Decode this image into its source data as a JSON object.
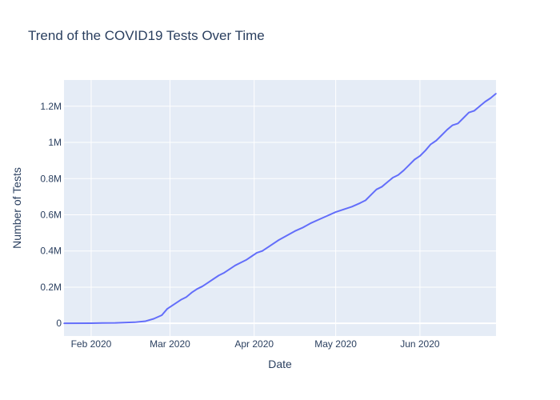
{
  "chart_data": {
    "type": "line",
    "title": "Trend of the COVID19 Tests Over Time",
    "xlabel": "Date",
    "ylabel": "Number of Tests",
    "xlim": [
      "2020-01-22",
      "2020-06-29"
    ],
    "ylim": [
      -70000,
      1345000
    ],
    "grid": true,
    "x_ticks": [
      {
        "date": "2020-02-01",
        "label": "Feb 2020"
      },
      {
        "date": "2020-03-01",
        "label": "Mar 2020"
      },
      {
        "date": "2020-04-01",
        "label": "Apr 2020"
      },
      {
        "date": "2020-05-01",
        "label": "May 2020"
      },
      {
        "date": "2020-06-01",
        "label": "Jun 2020"
      }
    ],
    "y_ticks": [
      {
        "value": 0,
        "label": "0"
      },
      {
        "value": 200000,
        "label": "0.2M"
      },
      {
        "value": 400000,
        "label": "0.4M"
      },
      {
        "value": 600000,
        "label": "0.6M"
      },
      {
        "value": 800000,
        "label": "0.8M"
      },
      {
        "value": 1000000,
        "label": "1M"
      },
      {
        "value": 1200000,
        "label": "1.2M"
      }
    ],
    "series": [
      {
        "color": "#636efa",
        "x": [
          "2020-01-22",
          "2020-02-01",
          "2020-02-10",
          "2020-02-17",
          "2020-02-21",
          "2020-02-24",
          "2020-02-27",
          "2020-02-29",
          "2020-03-02",
          "2020-03-03",
          "2020-03-05",
          "2020-03-07",
          "2020-03-09",
          "2020-03-11",
          "2020-03-13",
          "2020-03-15",
          "2020-03-17",
          "2020-03-19",
          "2020-03-21",
          "2020-03-23",
          "2020-03-25",
          "2020-03-27",
          "2020-03-29",
          "2020-03-31",
          "2020-04-02",
          "2020-04-04",
          "2020-04-07",
          "2020-04-10",
          "2020-04-13",
          "2020-04-16",
          "2020-04-19",
          "2020-04-22",
          "2020-04-25",
          "2020-04-28",
          "2020-05-01",
          "2020-05-04",
          "2020-05-07",
          "2020-05-10",
          "2020-05-12",
          "2020-05-14",
          "2020-05-16",
          "2020-05-18",
          "2020-05-20",
          "2020-05-22",
          "2020-05-24",
          "2020-05-26",
          "2020-05-28",
          "2020-05-30",
          "2020-06-01",
          "2020-06-03",
          "2020-06-05",
          "2020-06-07",
          "2020-06-09",
          "2020-06-11",
          "2020-06-13",
          "2020-06-15",
          "2020-06-17",
          "2020-06-19",
          "2020-06-21",
          "2020-06-23",
          "2020-06-25",
          "2020-06-27",
          "2020-06-29"
        ],
        "y": [
          0,
          1000,
          2500,
          6000,
          12000,
          25000,
          45000,
          80000,
          100000,
          110000,
          130000,
          145000,
          170000,
          190000,
          205000,
          225000,
          245000,
          265000,
          280000,
          300000,
          320000,
          335000,
          350000,
          370000,
          390000,
          400000,
          430000,
          460000,
          485000,
          510000,
          530000,
          555000,
          575000,
          595000,
          615000,
          630000,
          645000,
          665000,
          680000,
          710000,
          740000,
          755000,
          780000,
          805000,
          820000,
          845000,
          875000,
          905000,
          925000,
          955000,
          990000,
          1010000,
          1040000,
          1070000,
          1095000,
          1105000,
          1135000,
          1165000,
          1175000,
          1200000,
          1225000,
          1245000,
          1270000
        ]
      }
    ]
  }
}
